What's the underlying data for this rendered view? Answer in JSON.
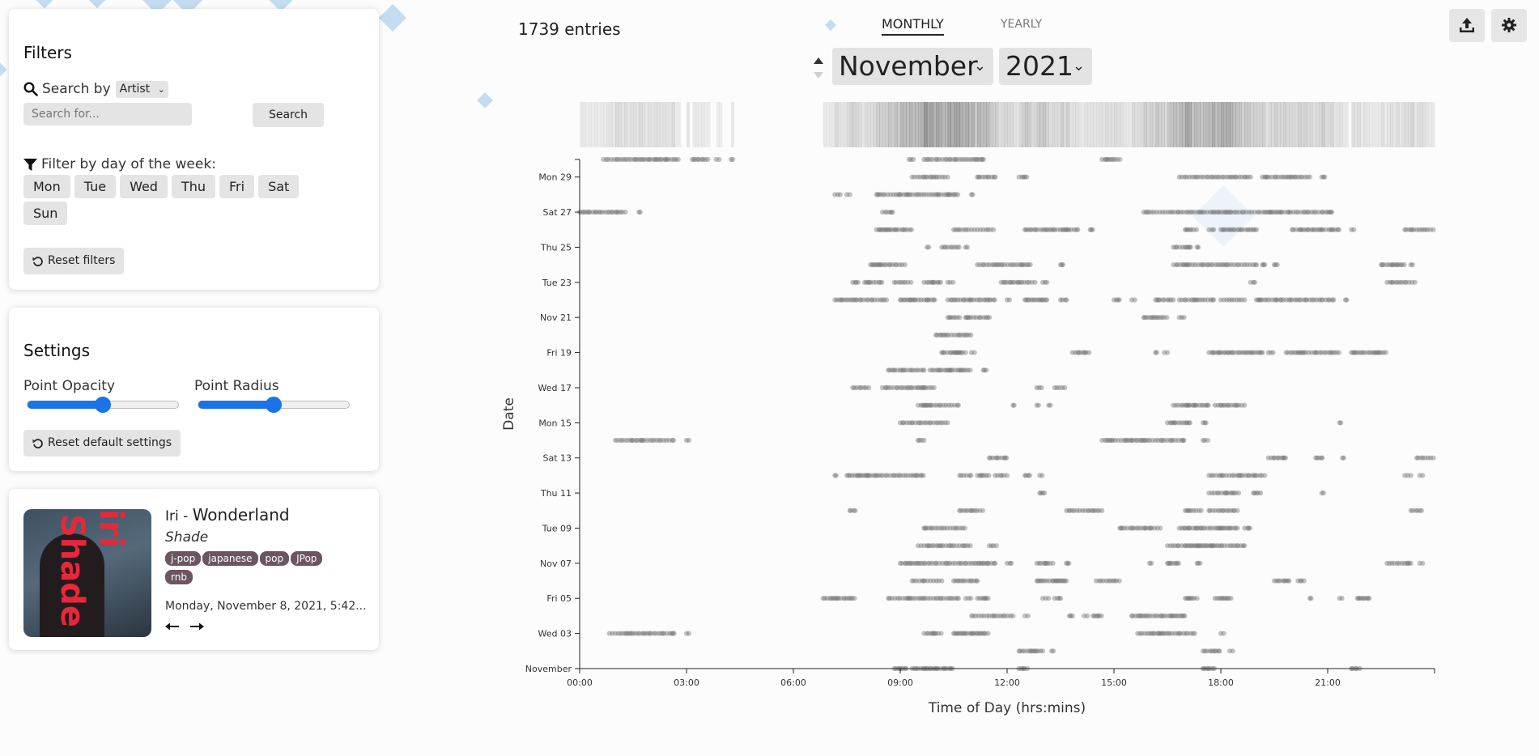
{
  "entries_count": "1739 entries",
  "view_tabs": [
    {
      "label": "MONTHLY",
      "active": true
    },
    {
      "label": "YEARLY",
      "active": false
    }
  ],
  "month_select": "November",
  "year_select": "2021",
  "filters": {
    "title": "Filters",
    "search_by_label": "Search by",
    "search_field": "Artist",
    "search_placeholder": "Search for...",
    "search_button": "Search",
    "day_filter_label": "Filter by day of the week:",
    "days": [
      "Mon",
      "Tue",
      "Wed",
      "Thu",
      "Fri",
      "Sat",
      "Sun"
    ],
    "reset_button": "Reset filters"
  },
  "settings": {
    "title": "Settings",
    "opacity_label": "Point Opacity",
    "opacity_value": 0.5,
    "radius_label": "Point Radius",
    "radius_value": 0.5,
    "reset_button": "Reset default settings"
  },
  "now_playing": {
    "artist": "Iri",
    "separator": " - ",
    "title": "Wonderland",
    "album": "Shade",
    "tags": [
      "j-pop",
      "japanese",
      "pop",
      "JPop",
      "rnb"
    ],
    "timestamp": "Monday, November 8, 2021, 5:42...",
    "prev_icon": "arrow-left-icon",
    "next_icon": "arrow-right-icon",
    "cover_text_1": "iri",
    "cover_text_2": "Shade"
  },
  "icons": {
    "search": "search-icon",
    "filter": "filter-icon",
    "reset": "reset-icon",
    "upload": "upload-icon",
    "settings": "gear-icon",
    "sort_up": "triangle-up-icon",
    "sort_down": "triangle-down-icon"
  },
  "colors": {
    "accent": "#1a73e8",
    "tag_bg": "#6b5560",
    "point": "#6f6f6f",
    "decor": "#b9d6ee"
  },
  "chart_data": {
    "type": "scatter",
    "xlabel": "Time of Day (hrs:mins)",
    "ylabel": "Date",
    "xlim": [
      "00:00",
      "24:00"
    ],
    "ylim": [
      "2021-11-01",
      "2021-11-30"
    ],
    "x_ticks": [
      "00:00",
      "03:00",
      "06:00",
      "09:00",
      "12:00",
      "15:00",
      "18:00",
      "21:00"
    ],
    "y_ticks": [
      "November",
      "Wed 03",
      "Fri 05",
      "Nov 07",
      "Tue 09",
      "Thu 11",
      "Sat 13",
      "Mon 15",
      "Wed 17",
      "Fri 19",
      "Nov 21",
      "Tue 23",
      "Thu 25",
      "Sat 27",
      "Mon 29"
    ],
    "density_strip": true,
    "clusters": [
      {
        "date": "2021-11-01",
        "ranges": [
          [
            "08:50",
            "09:10"
          ],
          [
            "09:20",
            "10:30"
          ],
          [
            "12:20",
            "12:35"
          ],
          [
            "17:30",
            "17:50"
          ],
          [
            "21:40",
            "21:55"
          ]
        ]
      },
      {
        "date": "2021-11-02",
        "ranges": [
          [
            "12:20",
            "13:00"
          ],
          [
            "13:15",
            "13:20"
          ],
          [
            "17:30",
            "18:00"
          ],
          [
            "18:15",
            "18:20"
          ]
        ]
      },
      {
        "date": "2021-11-03",
        "ranges": [
          [
            "00:50",
            "02:40"
          ],
          [
            "03:00",
            "03:05"
          ],
          [
            "09:40",
            "10:10"
          ],
          [
            "10:30",
            "11:30"
          ],
          [
            "15:40",
            "17:20"
          ],
          [
            "18:00",
            "18:05"
          ]
        ]
      },
      {
        "date": "2021-11-04",
        "ranges": [
          [
            "11:00",
            "12:10"
          ],
          [
            "12:30",
            "12:35"
          ],
          [
            "13:45",
            "13:50"
          ],
          [
            "14:10",
            "14:15"
          ],
          [
            "14:25",
            "14:40"
          ],
          [
            "15:30",
            "17:00"
          ]
        ]
      },
      {
        "date": "2021-11-05",
        "ranges": [
          [
            "06:50",
            "07:45"
          ],
          [
            "08:40",
            "10:40"
          ],
          [
            "10:50",
            "11:00"
          ],
          [
            "11:10",
            "11:30"
          ],
          [
            "13:00",
            "13:10"
          ],
          [
            "13:20",
            "13:30"
          ],
          [
            "17:00",
            "17:20"
          ],
          [
            "17:50",
            "18:20"
          ],
          [
            "20:30",
            "20:35"
          ],
          [
            "21:20",
            "21:25"
          ],
          [
            "21:50",
            "22:10"
          ]
        ]
      },
      {
        "date": "2021-11-06",
        "ranges": [
          [
            "09:20",
            "10:10"
          ],
          [
            "10:30",
            "11:10"
          ],
          [
            "12:50",
            "13:40"
          ],
          [
            "14:30",
            "15:10"
          ],
          [
            "19:30",
            "19:55"
          ],
          [
            "20:10",
            "20:20"
          ]
        ]
      },
      {
        "date": "2021-11-07",
        "ranges": [
          [
            "09:00",
            "11:40"
          ],
          [
            "12:00",
            "12:10"
          ],
          [
            "12:50",
            "13:20"
          ],
          [
            "13:40",
            "13:45"
          ],
          [
            "16:00",
            "16:05"
          ],
          [
            "16:30",
            "16:50"
          ],
          [
            "17:20",
            "17:25"
          ],
          [
            "22:40",
            "23:20"
          ],
          [
            "23:35",
            "23:40"
          ]
        ]
      },
      {
        "date": "2021-11-08",
        "ranges": [
          [
            "09:30",
            "11:00"
          ],
          [
            "11:30",
            "11:45"
          ],
          [
            "16:30",
            "18:40"
          ]
        ]
      },
      {
        "date": "2021-11-09",
        "ranges": [
          [
            "09:40",
            "10:50"
          ],
          [
            "15:10",
            "16:20"
          ],
          [
            "16:50",
            "18:30"
          ],
          [
            "18:40",
            "18:50"
          ]
        ]
      },
      {
        "date": "2021-11-10",
        "ranges": [
          [
            "07:35",
            "07:45"
          ],
          [
            "10:40",
            "11:20"
          ],
          [
            "13:40",
            "14:40"
          ],
          [
            "17:00",
            "17:30"
          ],
          [
            "17:40",
            "18:30"
          ],
          [
            "23:20",
            "23:40"
          ]
        ]
      },
      {
        "date": "2021-11-11",
        "ranges": [
          [
            "12:55",
            "13:05"
          ],
          [
            "17:40",
            "18:30"
          ],
          [
            "18:55",
            "19:10"
          ],
          [
            "20:50",
            "20:55"
          ]
        ]
      },
      {
        "date": "2021-11-12",
        "ranges": [
          [
            "07:10",
            "07:15"
          ],
          [
            "07:30",
            "09:40"
          ],
          [
            "10:40",
            "11:00"
          ],
          [
            "11:10",
            "11:30"
          ],
          [
            "11:40",
            "12:00"
          ],
          [
            "12:30",
            "12:40"
          ],
          [
            "12:55",
            "13:00"
          ],
          [
            "17:40",
            "19:15"
          ],
          [
            "23:10",
            "23:20"
          ],
          [
            "23:35",
            "23:40"
          ]
        ]
      },
      {
        "date": "2021-11-13",
        "ranges": [
          [
            "11:30",
            "12:00"
          ],
          [
            "19:20",
            "19:50"
          ],
          [
            "20:40",
            "20:55"
          ],
          [
            "21:25",
            "21:30"
          ],
          [
            "23:30",
            "24:00"
          ]
        ]
      },
      {
        "date": "2021-11-14",
        "ranges": [
          [
            "01:00",
            "02:40"
          ],
          [
            "03:00",
            "03:05"
          ],
          [
            "09:30",
            "09:40"
          ],
          [
            "14:40",
            "17:00"
          ],
          [
            "17:30",
            "17:40"
          ]
        ]
      },
      {
        "date": "2021-11-15",
        "ranges": [
          [
            "09:00",
            "10:20"
          ],
          [
            "16:30",
            "17:10"
          ],
          [
            "17:30",
            "17:35"
          ],
          [
            "21:20",
            "21:25"
          ]
        ]
      },
      {
        "date": "2021-11-16",
        "ranges": [
          [
            "09:30",
            "10:40"
          ],
          [
            "12:10",
            "12:15"
          ],
          [
            "12:50",
            "12:55"
          ],
          [
            "13:10",
            "13:15"
          ],
          [
            "16:40",
            "17:40"
          ],
          [
            "17:50",
            "18:40"
          ]
        ]
      },
      {
        "date": "2021-11-17",
        "ranges": [
          [
            "07:40",
            "08:10"
          ],
          [
            "08:30",
            "10:00"
          ],
          [
            "12:50",
            "13:00"
          ],
          [
            "13:20",
            "13:40"
          ]
        ]
      },
      {
        "date": "2021-11-18",
        "ranges": [
          [
            "08:40",
            "09:40"
          ],
          [
            "09:50",
            "11:00"
          ],
          [
            "11:20",
            "11:25"
          ]
        ]
      },
      {
        "date": "2021-11-19",
        "ranges": [
          [
            "10:10",
            "10:50"
          ],
          [
            "11:00",
            "11:05"
          ],
          [
            "13:50",
            "14:20"
          ],
          [
            "16:10",
            "16:15"
          ],
          [
            "16:25",
            "16:30"
          ],
          [
            "17:40",
            "19:10"
          ],
          [
            "19:20",
            "19:30"
          ],
          [
            "19:50",
            "21:20"
          ],
          [
            "21:40",
            "22:40"
          ]
        ]
      },
      {
        "date": "2021-11-20",
        "ranges": [
          [
            "10:00",
            "11:00"
          ]
        ]
      },
      {
        "date": "2021-11-21",
        "ranges": [
          [
            "10:20",
            "10:40"
          ],
          [
            "10:50",
            "11:30"
          ],
          [
            "15:50",
            "16:30"
          ],
          [
            "16:50",
            "17:00"
          ]
        ]
      },
      {
        "date": "2021-11-22",
        "ranges": [
          [
            "07:10",
            "08:40"
          ],
          [
            "09:00",
            "10:00"
          ],
          [
            "10:20",
            "11:40"
          ],
          [
            "12:00",
            "12:05"
          ],
          [
            "12:30",
            "13:10"
          ],
          [
            "13:30",
            "13:40"
          ],
          [
            "15:00",
            "15:10"
          ],
          [
            "15:30",
            "15:35"
          ],
          [
            "16:10",
            "16:40"
          ],
          [
            "16:50",
            "17:50"
          ],
          [
            "18:00",
            "18:40"
          ],
          [
            "19:00",
            "21:10"
          ],
          [
            "21:30",
            "21:35"
          ]
        ]
      },
      {
        "date": "2021-11-23",
        "ranges": [
          [
            "07:40",
            "07:50"
          ],
          [
            "08:00",
            "08:30"
          ],
          [
            "08:50",
            "09:20"
          ],
          [
            "09:40",
            "10:10"
          ],
          [
            "10:20",
            "10:30"
          ],
          [
            "11:50",
            "12:50"
          ],
          [
            "13:00",
            "13:10"
          ],
          [
            "18:50",
            "19:00"
          ],
          [
            "22:40",
            "23:30"
          ]
        ]
      },
      {
        "date": "2021-11-24",
        "ranges": [
          [
            "08:10",
            "09:10"
          ],
          [
            "11:10",
            "12:40"
          ],
          [
            "13:30",
            "13:35"
          ],
          [
            "16:40",
            "19:00"
          ],
          [
            "19:10",
            "19:15"
          ],
          [
            "19:30",
            "19:35"
          ],
          [
            "22:30",
            "23:10"
          ],
          [
            "23:20",
            "23:25"
          ]
        ]
      },
      {
        "date": "2021-11-25",
        "ranges": [
          [
            "09:45",
            "09:50"
          ],
          [
            "10:10",
            "10:40"
          ],
          [
            "10:50",
            "10:55"
          ],
          [
            "16:40",
            "17:10"
          ],
          [
            "17:20",
            "17:25"
          ]
        ]
      },
      {
        "date": "2021-11-26",
        "ranges": [
          [
            "08:20",
            "09:20"
          ],
          [
            "10:30",
            "11:40"
          ],
          [
            "12:30",
            "14:00"
          ],
          [
            "14:20",
            "14:25"
          ],
          [
            "17:00",
            "17:20"
          ],
          [
            "17:40",
            "17:50"
          ],
          [
            "18:00",
            "19:00"
          ],
          [
            "20:00",
            "21:20"
          ],
          [
            "21:40",
            "21:45"
          ],
          [
            "23:10",
            "24:00"
          ]
        ]
      },
      {
        "date": "2021-11-27",
        "ranges": [
          [
            "00:00",
            "01:20"
          ],
          [
            "01:40",
            "01:45"
          ],
          [
            "08:30",
            "08:50"
          ],
          [
            "15:50",
            "21:10"
          ]
        ]
      },
      {
        "date": "2021-11-28",
        "ranges": [
          [
            "07:10",
            "07:20"
          ],
          [
            "07:30",
            "07:35"
          ],
          [
            "08:20",
            "10:40"
          ],
          [
            "11:00",
            "11:05"
          ]
        ]
      },
      {
        "date": "2021-11-29",
        "ranges": [
          [
            "09:20",
            "10:20"
          ],
          [
            "11:10",
            "11:40"
          ],
          [
            "12:20",
            "12:35"
          ],
          [
            "16:50",
            "18:50"
          ],
          [
            "19:10",
            "20:30"
          ],
          [
            "20:50",
            "20:55"
          ]
        ]
      },
      {
        "date": "2021-11-30",
        "ranges": [
          [
            "00:40",
            "02:50"
          ],
          [
            "03:10",
            "03:40"
          ],
          [
            "03:50",
            "03:55"
          ],
          [
            "04:15",
            "04:20"
          ],
          [
            "09:15",
            "09:25"
          ],
          [
            "09:40",
            "09:55"
          ],
          [
            "10:00",
            "11:20"
          ],
          [
            "14:40",
            "15:10"
          ]
        ]
      }
    ]
  }
}
